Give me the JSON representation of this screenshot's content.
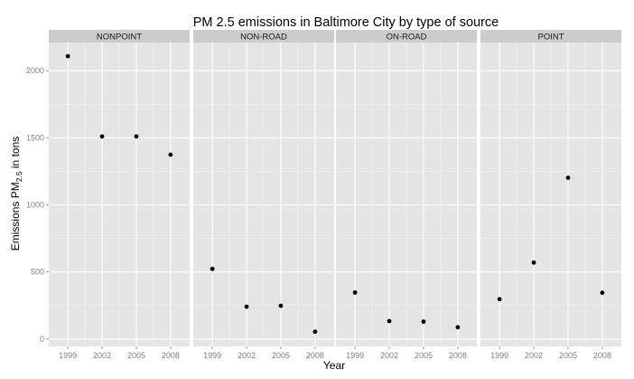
{
  "chart_data": {
    "type": "scatter",
    "title": "PM 2.5 emissions in Baltimore City by type of source",
    "xlabel": "Year",
    "ylabel": "Emissions PM2.5 in tons",
    "ylabel_parts": {
      "before": "Emissions  PM",
      "sub": "2.5",
      "after": " in tons"
    },
    "x": [
      1999,
      2002,
      2005,
      2008
    ],
    "x_ticks": [
      "1999",
      "2002",
      "2005",
      "2008"
    ],
    "y_ticks": [
      0,
      500,
      1000,
      1500,
      2000
    ],
    "ylim": [
      -55,
      2210
    ],
    "grid": true,
    "facets": [
      {
        "name": "NONPOINT",
        "values": [
          2108,
          1510,
          1510,
          1374
        ]
      },
      {
        "name": "NON-ROAD",
        "values": [
          523,
          241,
          248,
          55
        ]
      },
      {
        "name": "ON-ROAD",
        "values": [
          347,
          134,
          130,
          88
        ]
      },
      {
        "name": "POINT",
        "values": [
          297,
          570,
          1202,
          345
        ]
      }
    ]
  }
}
